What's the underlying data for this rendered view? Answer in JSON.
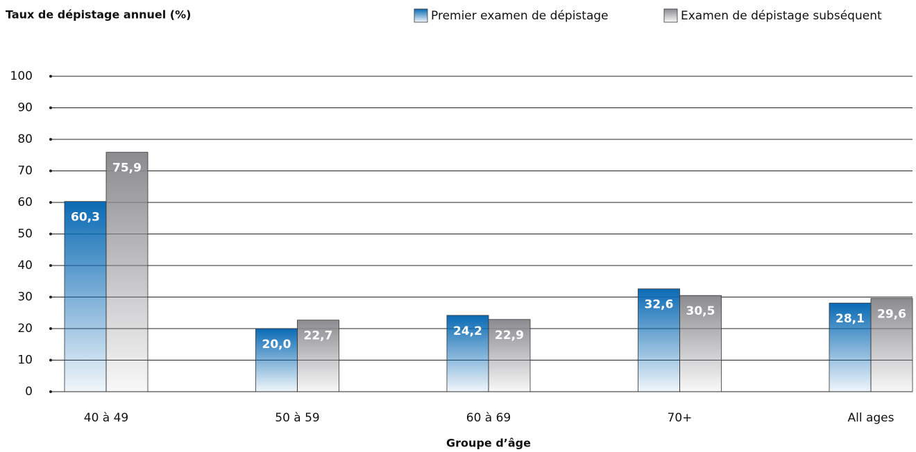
{
  "chart_data": {
    "type": "bar",
    "title": "Taux de dépistage annuel (%)",
    "x_label": "Groupe d’âge",
    "categories": [
      "40 à 49",
      "50 à 59",
      "60 à 69",
      "70+",
      "All ages"
    ],
    "series": [
      {
        "name": "Premier examen de dépistage",
        "color": "#0a6ab4",
        "values": [
          60.3,
          20.0,
          24.2,
          32.6,
          28.1
        ],
        "value_labels": [
          "60,3",
          "20,0",
          "24,2",
          "32,6",
          "28,1"
        ]
      },
      {
        "name": "Examen de dépistage subséquent",
        "color": "#8c8c90",
        "values": [
          75.9,
          22.7,
          22.9,
          30.5,
          29.6
        ],
        "value_labels": [
          "75,9",
          "22,7",
          "22,9",
          "30,5",
          "29,6"
        ]
      }
    ],
    "ylim": [
      0,
      100
    ],
    "yticks": [
      0,
      10,
      20,
      30,
      40,
      50,
      60,
      70,
      80,
      90,
      100
    ],
    "grid": true,
    "legend": "top-right"
  }
}
